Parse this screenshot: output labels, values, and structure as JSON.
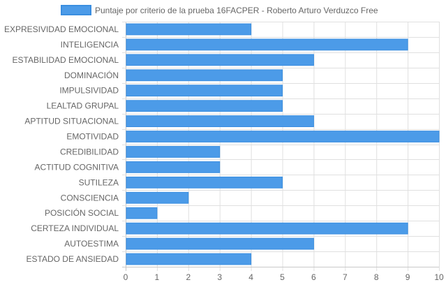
{
  "chart_data": {
    "type": "bar",
    "orientation": "horizontal",
    "legend": {
      "label": "Puntaje por criterio de la prueba 16FACPER - Roberto Arturo Verduzco Free",
      "position": "top"
    },
    "categories": [
      "EXPRESIVIDAD EMOCIONAL",
      "INTELIGENCIA",
      "ESTABILIDAD EMOCIONAL",
      "DOMINACIÓN",
      "IMPULSIVIDAD",
      "LEALTAD GRUPAL",
      "APTITUD SITUACIONAL",
      "EMOTIVIDAD",
      "CREDIBILIDAD",
      "ACTITUD COGNITIVA",
      "SUTILEZA",
      "CONSCIENCIA",
      "POSICIÓN SOCIAL",
      "CERTEZA INDIVIDUAL",
      "AUTOESTIMA",
      "ESTADO DE ANSIEDAD"
    ],
    "series": [
      {
        "name": "Puntaje por criterio de la prueba 16FACPER - Roberto Arturo Verduzco Free",
        "values": [
          4,
          9,
          6,
          5,
          5,
          5,
          6,
          10,
          3,
          3,
          5,
          2,
          1,
          9,
          6,
          4
        ]
      }
    ],
    "xlim": [
      0,
      10
    ],
    "xticks": [
      "0",
      "1",
      "2",
      "3",
      "4",
      "5",
      "6",
      "7",
      "8",
      "9",
      "10"
    ],
    "grid": true,
    "colors": {
      "bar_fill": "#4c9be8",
      "bar_border": "#3a8ee0",
      "grid": "#e0e0e0",
      "axis": "#c8c8c8",
      "text": "#666666"
    }
  }
}
